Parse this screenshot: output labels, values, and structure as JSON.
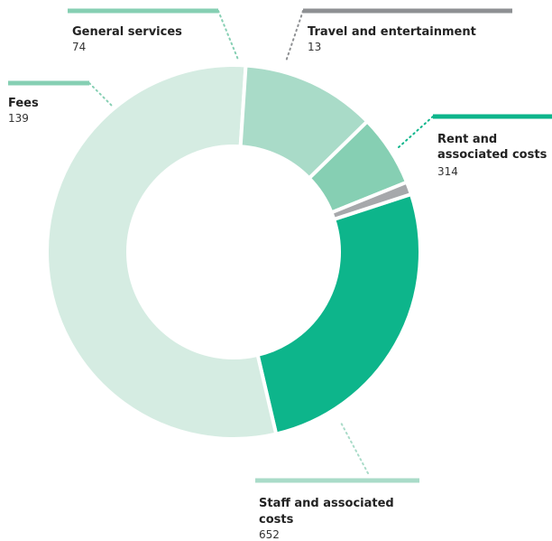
{
  "chart_data": {
    "type": "pie",
    "subtype": "donut",
    "title": "",
    "legend": "none",
    "categories": [
      "Rent and associated costs",
      "Staff and associated costs",
      "Fees",
      "General services",
      "Travel and entertainment"
    ],
    "values": [
      314,
      652,
      139,
      74,
      13
    ],
    "value_labels": [
      "314",
      "652",
      "139",
      "74",
      "13"
    ],
    "colors": [
      "#0db58b",
      "#d5ece2",
      "#a9dbc8",
      "#86cfb3",
      "#a6a8ab"
    ],
    "label_bar_colors": [
      "#0db58b",
      "#a9dbc8",
      "#86cfb3",
      "#86cfb3",
      "#8e9093"
    ]
  }
}
